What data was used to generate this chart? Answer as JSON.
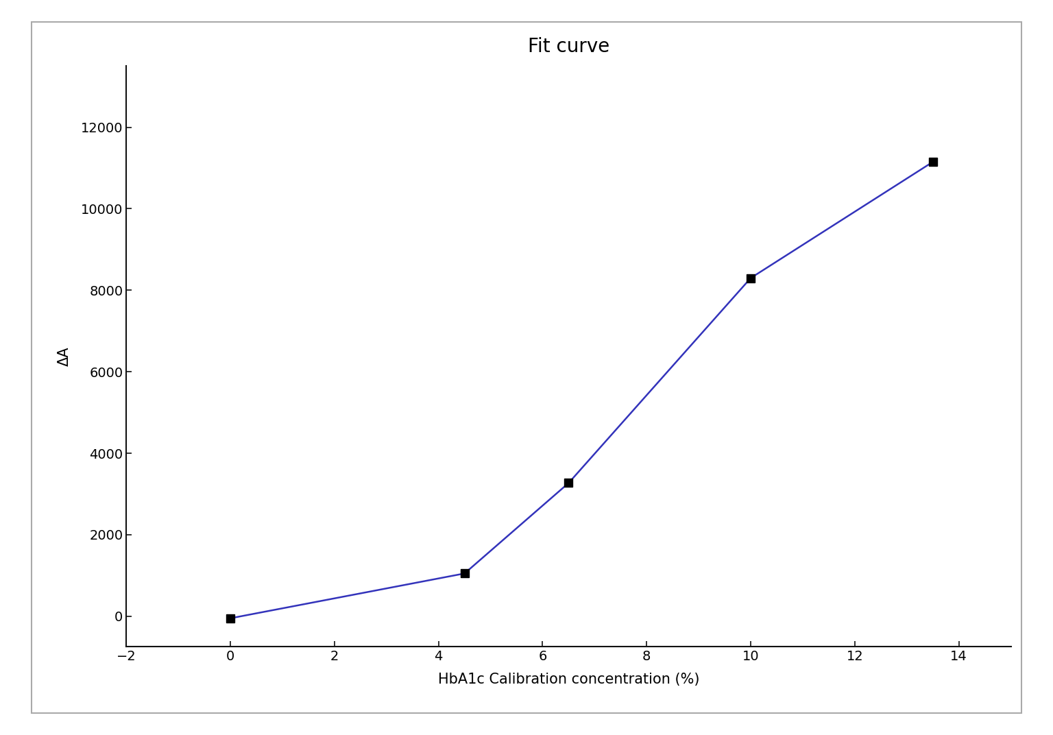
{
  "title": "Fit curve",
  "xlabel": "HbA1c Calibration concentration (%)",
  "ylabel": "ΔA",
  "x_data": [
    0,
    4.5,
    6.5,
    10,
    13.5
  ],
  "y_data": [
    -50,
    1050,
    3270,
    8300,
    11150
  ],
  "xlim": [
    -2,
    15
  ],
  "ylim": [
    -750,
    13500
  ],
  "xticks": [
    -2,
    0,
    2,
    4,
    6,
    8,
    10,
    12,
    14
  ],
  "yticks": [
    0,
    2000,
    4000,
    6000,
    8000,
    10000,
    12000
  ],
  "line_color": "#3333bb",
  "marker_color": "black",
  "marker_style": "s",
  "marker_size": 9,
  "line_width": 1.8,
  "title_fontsize": 20,
  "label_fontsize": 15,
  "tick_fontsize": 14,
  "fig_bg_color": "#ffffff",
  "plot_bg_color": "#ffffff",
  "outer_border_color": "#aaaaaa",
  "spine_color": "#111111"
}
